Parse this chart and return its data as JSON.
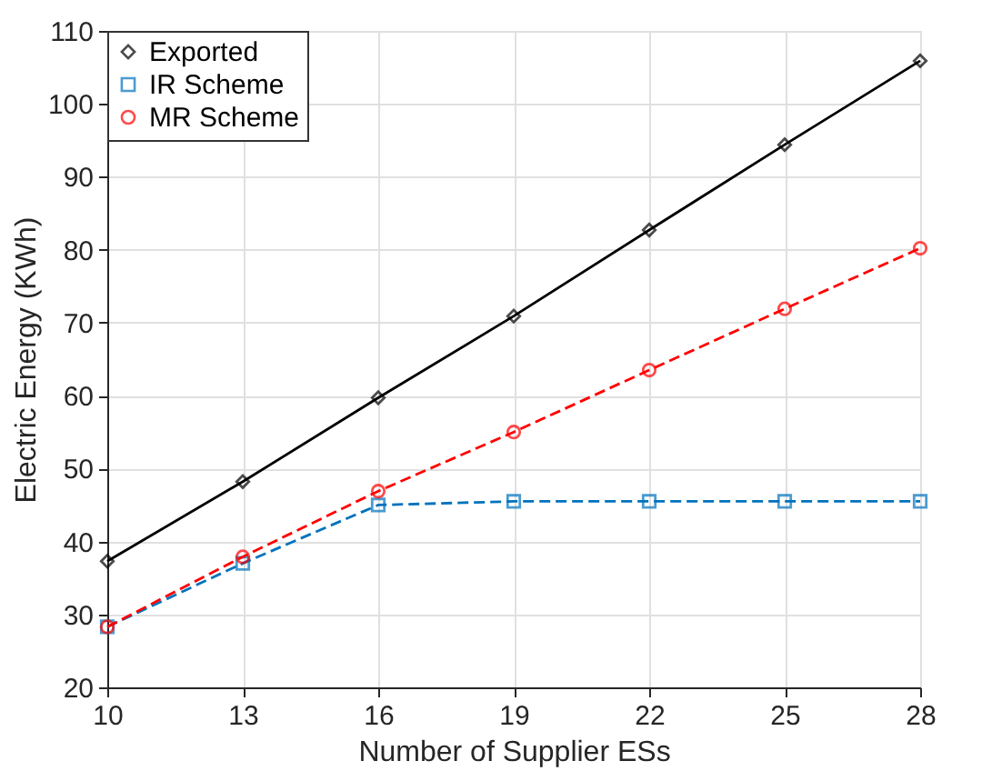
{
  "chart_data": {
    "type": "line",
    "xlabel": "Number of Supplier ESs",
    "ylabel": "Electric Energy (KWh)",
    "x": [
      10,
      13,
      16,
      19,
      22,
      25,
      28
    ],
    "series": [
      {
        "name": "Exported",
        "color": "#000000",
        "marker": "diamond",
        "line_style": "solid",
        "values": [
          37.3,
          48.2,
          59.7,
          70.9,
          82.7,
          94.4,
          105.9
        ]
      },
      {
        "name": "IR Scheme",
        "color": "#0072bd",
        "marker": "square",
        "line_style": "dashed",
        "values": [
          28.3,
          37.0,
          45.0,
          45.5,
          45.5,
          45.5,
          45.5
        ]
      },
      {
        "name": "MR Scheme",
        "color": "#ff0000",
        "marker": "circle",
        "line_style": "dashed",
        "values": [
          28.3,
          37.9,
          46.9,
          55.0,
          63.5,
          71.9,
          80.2
        ]
      }
    ],
    "xlim": [
      10,
      28
    ],
    "xticks": [
      10,
      13,
      16,
      19,
      22,
      25,
      28
    ],
    "ylim": [
      20,
      110
    ],
    "yticks": [
      20,
      30,
      40,
      50,
      60,
      70,
      80,
      90,
      100,
      110
    ],
    "grid": true,
    "legend": "top left"
  }
}
